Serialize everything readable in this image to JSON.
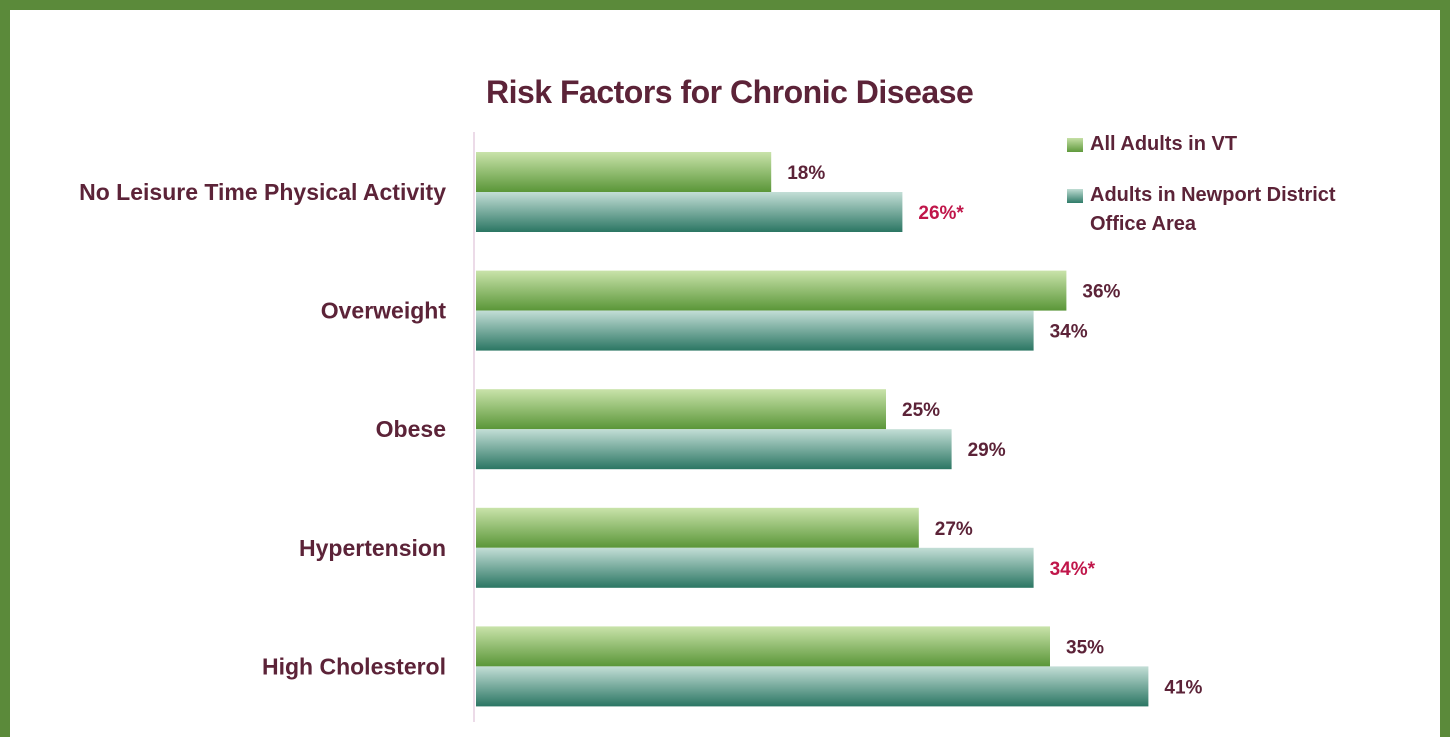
{
  "chart_data": {
    "type": "bar",
    "orientation": "horizontal",
    "title": "Risk Factors for Chronic Disease",
    "categories": [
      "No Leisure Time Physical Activity",
      "Overweight",
      "Obese",
      "Hypertension",
      "High Cholesterol"
    ],
    "series": [
      {
        "name": "All Adults in VT",
        "values": [
          18,
          36,
          25,
          27,
          35
        ],
        "labels": [
          "18%",
          "36%",
          "25%",
          "27%",
          "35%"
        ],
        "flagged": [
          false,
          false,
          false,
          false,
          false
        ]
      },
      {
        "name": "Adults in Newport District Office Area",
        "values": [
          26,
          34,
          29,
          34,
          41
        ],
        "labels": [
          "26%*",
          "34%",
          "29%",
          "34%*",
          "41%"
        ],
        "flagged": [
          true,
          false,
          false,
          true,
          false
        ]
      }
    ],
    "legend_position": "top-right",
    "colors": {
      "series_1_light": "#c5e0a5",
      "series_1_dark": "#5f9a3c",
      "series_2_light": "#bfdcd3",
      "series_2_dark": "#2f7b68",
      "label": "#5c2338",
      "flagged_label": "#c0164a",
      "frame": "#5b8a3a"
    }
  }
}
